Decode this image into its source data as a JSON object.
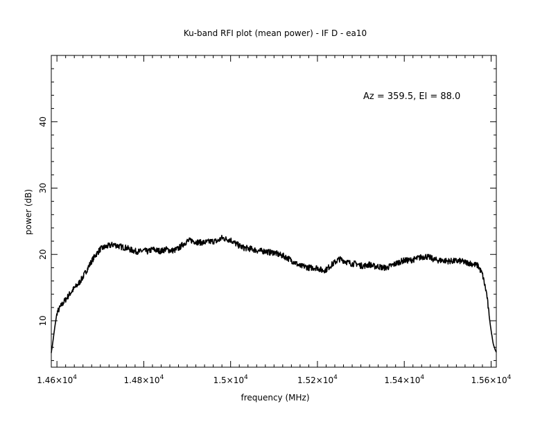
{
  "chart_data": {
    "type": "line",
    "title": "Ku-band RFI plot (mean power) - IF D - ea10",
    "xlabel": "frequency (MHz)",
    "ylabel": "power (dB)",
    "annotation": "Az = 359.5, El = 88.0",
    "xlim": [
      14587,
      15612
    ],
    "ylim": [
      3,
      50
    ],
    "x_ticks": [
      14600,
      14800,
      15000,
      15200,
      15400,
      15600
    ],
    "x_tick_labels": [
      {
        "mantissa": "1.46",
        "exp": "4"
      },
      {
        "mantissa": "1.48",
        "exp": "4"
      },
      {
        "mantissa": "1.5",
        "exp": "4"
      },
      {
        "mantissa": "1.52",
        "exp": "4"
      },
      {
        "mantissa": "1.54",
        "exp": "4"
      },
      {
        "mantissa": "1.56",
        "exp": "4"
      }
    ],
    "y_ticks": [
      10,
      20,
      30,
      40
    ],
    "y_tick_labels": [
      "10",
      "20",
      "30",
      "40"
    ],
    "series": [
      {
        "color": "#000000",
        "x": [
          14587,
          14590,
          14595,
          14600,
          14610,
          14620,
          14630,
          14640,
          14650,
          14660,
          14670,
          14680,
          14690,
          14700,
          14710,
          14720,
          14730,
          14740,
          14750,
          14760,
          14770,
          14780,
          14790,
          14800,
          14810,
          14820,
          14830,
          14840,
          14850,
          14860,
          14870,
          14880,
          14890,
          14900,
          14910,
          14920,
          14930,
          14940,
          14950,
          14960,
          14970,
          14980,
          14990,
          15000,
          15010,
          15020,
          15030,
          15040,
          15050,
          15060,
          15070,
          15080,
          15090,
          15100,
          15110,
          15120,
          15130,
          15140,
          15150,
          15160,
          15170,
          15180,
          15190,
          15200,
          15210,
          15220,
          15230,
          15240,
          15250,
          15260,
          15270,
          15280,
          15290,
          15300,
          15310,
          15320,
          15330,
          15340,
          15350,
          15360,
          15370,
          15380,
          15390,
          15400,
          15410,
          15420,
          15430,
          15440,
          15450,
          15460,
          15470,
          15480,
          15490,
          15500,
          15510,
          15520,
          15530,
          15540,
          15550,
          15560,
          15570,
          15580,
          15590,
          15595,
          15600,
          15605,
          15610,
          15612
        ],
        "y": [
          5.2,
          6.5,
          9.0,
          11.2,
          12.3,
          13.2,
          14.1,
          14.9,
          15.6,
          16.6,
          17.8,
          19.0,
          20.0,
          20.8,
          21.1,
          21.3,
          21.5,
          21.3,
          21.1,
          21.0,
          20.7,
          20.5,
          20.4,
          20.6,
          20.4,
          20.8,
          20.6,
          20.5,
          20.8,
          20.6,
          20.6,
          20.9,
          21.5,
          22.0,
          22.1,
          21.9,
          21.8,
          21.8,
          21.9,
          22.0,
          22.0,
          22.5,
          22.3,
          22.2,
          21.7,
          21.3,
          21.0,
          20.9,
          20.8,
          20.6,
          20.5,
          20.5,
          20.3,
          20.3,
          20.0,
          19.8,
          19.5,
          19.1,
          18.7,
          18.2,
          18.2,
          18.0,
          18.0,
          18.0,
          17.6,
          17.7,
          18.3,
          18.8,
          19.3,
          19.1,
          18.8,
          18.6,
          18.6,
          18.3,
          18.3,
          18.5,
          18.2,
          18.2,
          18.0,
          18.0,
          18.3,
          18.6,
          18.9,
          19.1,
          19.1,
          19.2,
          19.4,
          19.6,
          19.7,
          19.5,
          19.2,
          19.1,
          19.1,
          19.0,
          19.0,
          19.0,
          19.0,
          18.8,
          18.7,
          18.5,
          18.3,
          17.0,
          14.0,
          11.0,
          8.5,
          6.5,
          5.5,
          5.3
        ]
      }
    ]
  }
}
